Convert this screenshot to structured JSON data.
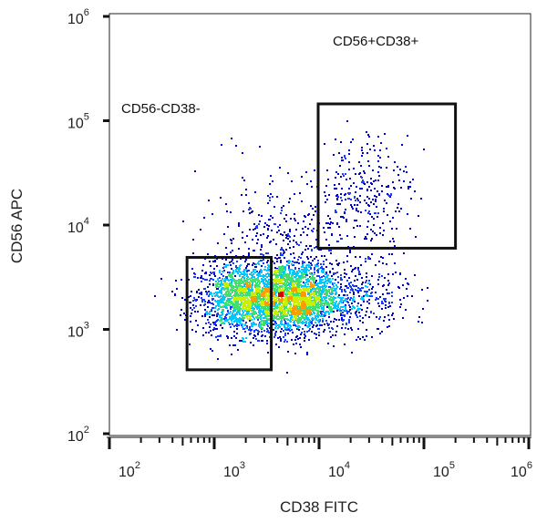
{
  "chart_data": {
    "type": "scatter",
    "subtype": "flow-cytometry-density-dot-plot",
    "xlabel": "CD38 FITC",
    "ylabel": "CD56 APC",
    "xscale": "log",
    "yscale": "log",
    "xlim": [
      100,
      1000000
    ],
    "ylim": [
      100,
      1000000
    ],
    "x_ticks": [
      {
        "base": "10",
        "exp": "2"
      },
      {
        "base": "10",
        "exp": "3"
      },
      {
        "base": "10",
        "exp": "4"
      },
      {
        "base": "10",
        "exp": "5"
      },
      {
        "base": "10",
        "exp": "6"
      }
    ],
    "y_ticks": [
      {
        "base": "10",
        "exp": "2"
      },
      {
        "base": "10",
        "exp": "3"
      },
      {
        "base": "10",
        "exp": "4"
      },
      {
        "base": "10",
        "exp": "5"
      },
      {
        "base": "10",
        "exp": "6"
      }
    ],
    "grid": false,
    "color_scale": [
      "#0000cc",
      "#1a3cff",
      "#00c8ff",
      "#40e070",
      "#c8f000",
      "#ff9a00",
      "#e00000"
    ],
    "gates": [
      {
        "label": "CD56-CD38-",
        "x_range": [
          550,
          3500
        ],
        "y_range": [
          410,
          4900
        ]
      },
      {
        "label": "CD56+CD38+",
        "x_range": [
          9800,
          200000
        ],
        "y_range": [
          6000,
          145000
        ]
      }
    ],
    "populations": [
      {
        "center": [
          1800,
          2000
        ],
        "spread_decades": [
          0.22,
          0.17
        ],
        "events": 1400
      },
      {
        "center": [
          5500,
          2000
        ],
        "spread_decades": [
          0.22,
          0.17
        ],
        "events": 1900
      },
      {
        "center": [
          18000,
          2100
        ],
        "spread_decades": [
          0.3,
          0.17
        ],
        "events": 450
      },
      {
        "center": [
          28000,
          22000
        ],
        "spread_decades": [
          0.22,
          0.28
        ],
        "events": 260
      },
      {
        "center": [
          4500,
          6000
        ],
        "spread_decades": [
          0.4,
          0.35
        ],
        "events": 420
      }
    ]
  }
}
